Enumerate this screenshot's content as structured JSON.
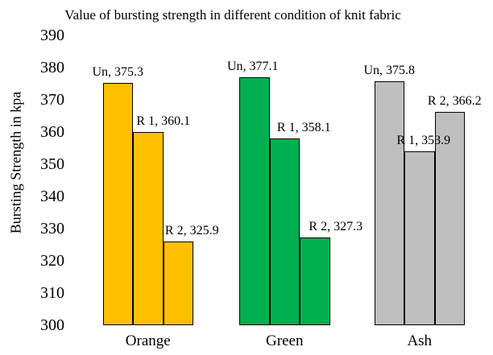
{
  "chart_data": {
    "type": "bar",
    "title": "Value of bursting strength in different condition of knit fabric",
    "xlabel": "",
    "ylabel": "Bursting Strength in kpa",
    "ylim": [
      300,
      390
    ],
    "ytick_step": 10,
    "yticks": [
      300,
      310,
      320,
      330,
      340,
      350,
      360,
      370,
      380,
      390
    ],
    "grid": false,
    "legend": "none",
    "categories": [
      "Orange",
      "Green",
      "Ash"
    ],
    "category_colors": [
      "#FFC000",
      "#00B050",
      "#BFBFBF"
    ],
    "bar_border_color": "#000000",
    "series": [
      {
        "name": "Un",
        "values": [
          375.3,
          377.1,
          375.8
        ]
      },
      {
        "name": "R 1",
        "values": [
          360.1,
          358.1,
          353.9
        ]
      },
      {
        "name": "R 2",
        "values": [
          325.9,
          327.3,
          366.2
        ]
      }
    ],
    "data_labels": [
      [
        "Un, 375.3",
        "R 1, 360.1",
        "R 2, 325.9"
      ],
      [
        "Un, 377.1",
        "R 1, 358.1",
        "R 2, 327.3"
      ],
      [
        "Un, 375.8",
        "R 1, 353.9",
        "R 2, 366.2"
      ]
    ],
    "label_dx": [
      [
        0,
        19,
        17
      ],
      [
        -2,
        24,
        26
      ],
      [
        0,
        5,
        6
      ]
    ]
  }
}
